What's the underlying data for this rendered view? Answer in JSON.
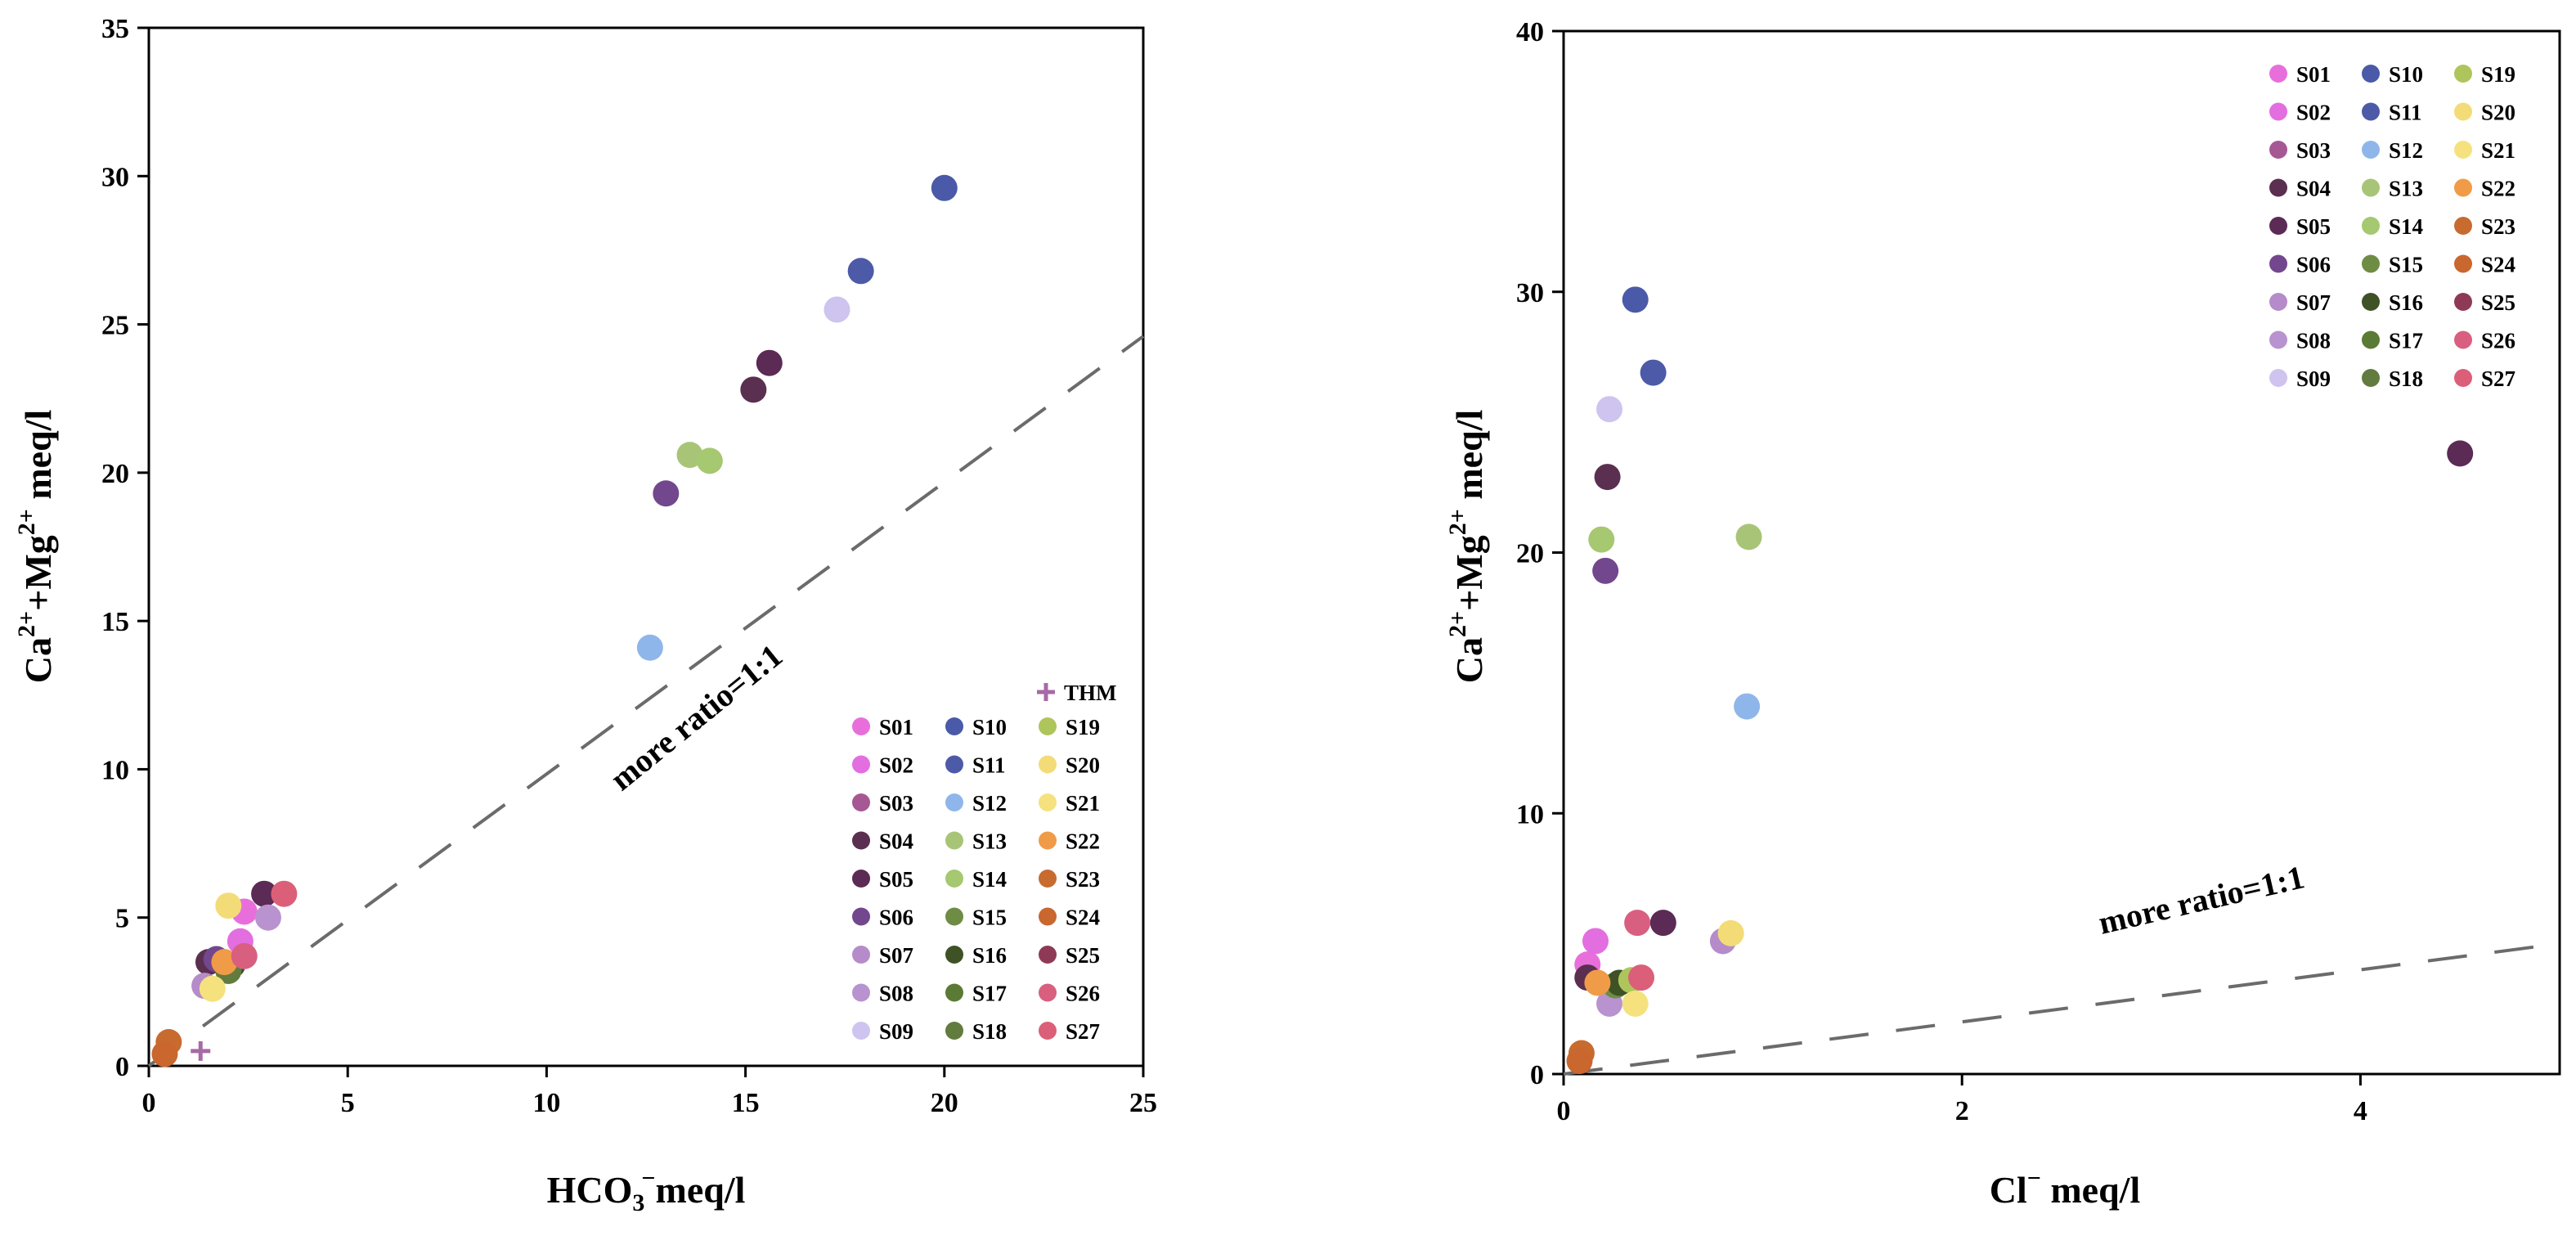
{
  "chart_data": [
    {
      "type": "scatter",
      "id": "left",
      "title": "",
      "xlabel": {
        "main": "HCO",
        "sub": "3",
        "sup": "−",
        "rest": "meq/l"
      },
      "ylabel": {
        "a": "Ca",
        "a_sup": "2+",
        "b": "+Mg",
        "b_sup": "2+",
        "rest": " meq/l"
      },
      "xlim": [
        0,
        25
      ],
      "ylim": [
        0,
        35
      ],
      "xticks": [
        "0",
        "5",
        "10",
        "15",
        "20",
        "25"
      ],
      "yticks": [
        "0",
        "5",
        "10",
        "15",
        "20",
        "25",
        "30",
        "35"
      ],
      "reference_line": {
        "label": "more ratio=1:1",
        "x": [
          0,
          25
        ],
        "y": [
          0,
          24.6
        ]
      },
      "thm": {
        "label": "THM",
        "x": 1.3,
        "y": 0.5
      },
      "points": [
        {
          "x": 2.4,
          "y": 5.2,
          "s": "S01"
        },
        {
          "x": 2.3,
          "y": 4.2,
          "s": "S02"
        },
        {
          "x": 1.5,
          "y": 3.5,
          "s": "S04"
        },
        {
          "x": 2.9,
          "y": 5.8,
          "s": "S05"
        },
        {
          "x": 15.2,
          "y": 22.8,
          "s": "S04"
        },
        {
          "x": 15.6,
          "y": 23.7,
          "s": "S05"
        },
        {
          "x": 13.0,
          "y": 19.3,
          "s": "S06"
        },
        {
          "x": 1.7,
          "y": 3.6,
          "s": "S06"
        },
        {
          "x": 1.4,
          "y": 2.7,
          "s": "S07"
        },
        {
          "x": 3.0,
          "y": 5.0,
          "s": "S08"
        },
        {
          "x": 17.3,
          "y": 25.5,
          "s": "S09"
        },
        {
          "x": 20.0,
          "y": 29.6,
          "s": "S10"
        },
        {
          "x": 17.9,
          "y": 26.8,
          "s": "S11"
        },
        {
          "x": 12.6,
          "y": 14.1,
          "s": "S12"
        },
        {
          "x": 13.6,
          "y": 20.6,
          "s": "S13"
        },
        {
          "x": 14.1,
          "y": 20.4,
          "s": "S14"
        },
        {
          "x": 2.0,
          "y": 3.3,
          "s": "S15"
        },
        {
          "x": 2.1,
          "y": 3.4,
          "s": "S16"
        },
        {
          "x": 2.0,
          "y": 3.2,
          "s": "S18"
        },
        {
          "x": 2.0,
          "y": 5.4,
          "s": "S20"
        },
        {
          "x": 1.6,
          "y": 2.6,
          "s": "S21"
        },
        {
          "x": 1.9,
          "y": 3.5,
          "s": "S22"
        },
        {
          "x": 0.5,
          "y": 0.8,
          "s": "S23"
        },
        {
          "x": 0.4,
          "y": 0.4,
          "s": "S24"
        },
        {
          "x": 3.4,
          "y": 5.8,
          "s": "S27"
        },
        {
          "x": 2.4,
          "y": 3.7,
          "s": "S26"
        }
      ]
    },
    {
      "type": "scatter",
      "id": "right",
      "title": "",
      "xlabel": {
        "main": "Cl",
        "sub": "",
        "sup": "−",
        "rest": " meq/l"
      },
      "ylabel": {
        "a": "Ca",
        "a_sup": "2+",
        "b": "+Mg",
        "b_sup": "2+",
        "rest": " meq/l"
      },
      "xlim": [
        0,
        5
      ],
      "ylim": [
        0,
        40
      ],
      "xticks": [
        "0",
        "2",
        "4"
      ],
      "yticks": [
        "0",
        "10",
        "20",
        "30",
        "40"
      ],
      "reference_line": {
        "label": "more ratio=1:1",
        "x": [
          0,
          5
        ],
        "y": [
          0,
          5
        ]
      },
      "points": [
        {
          "x": 0.12,
          "y": 4.2,
          "s": "S01"
        },
        {
          "x": 0.16,
          "y": 5.1,
          "s": "S02"
        },
        {
          "x": 0.12,
          "y": 3.7,
          "s": "S04"
        },
        {
          "x": 0.22,
          "y": 22.9,
          "s": "S04"
        },
        {
          "x": 4.5,
          "y": 23.8,
          "s": "S05"
        },
        {
          "x": 0.5,
          "y": 5.8,
          "s": "S05"
        },
        {
          "x": 0.21,
          "y": 19.3,
          "s": "S06"
        },
        {
          "x": 0.8,
          "y": 5.1,
          "s": "S07"
        },
        {
          "x": 0.23,
          "y": 2.7,
          "s": "S08"
        },
        {
          "x": 0.23,
          "y": 25.5,
          "s": "S09"
        },
        {
          "x": 0.36,
          "y": 29.7,
          "s": "S10"
        },
        {
          "x": 0.45,
          "y": 26.9,
          "s": "S11"
        },
        {
          "x": 0.92,
          "y": 14.1,
          "s": "S12"
        },
        {
          "x": 0.93,
          "y": 20.6,
          "s": "S13"
        },
        {
          "x": 0.19,
          "y": 20.5,
          "s": "S14"
        },
        {
          "x": 0.26,
          "y": 3.4,
          "s": "S15"
        },
        {
          "x": 0.28,
          "y": 3.5,
          "s": "S16"
        },
        {
          "x": 0.34,
          "y": 3.6,
          "s": "S19"
        },
        {
          "x": 0.84,
          "y": 5.4,
          "s": "S20"
        },
        {
          "x": 0.36,
          "y": 2.7,
          "s": "S21"
        },
        {
          "x": 0.17,
          "y": 3.5,
          "s": "S22"
        },
        {
          "x": 0.09,
          "y": 0.8,
          "s": "S23"
        },
        {
          "x": 0.08,
          "y": 0.5,
          "s": "S24"
        },
        {
          "x": 0.37,
          "y": 5.8,
          "s": "S26"
        },
        {
          "x": 0.39,
          "y": 3.7,
          "s": "S27"
        }
      ]
    }
  ],
  "legend": {
    "columns": [
      [
        "S01",
        "S02",
        "S03",
        "S04",
        "S05",
        "S06",
        "S07",
        "S08",
        "S09"
      ],
      [
        "S10",
        "S11",
        "S12",
        "S13",
        "S14",
        "S15",
        "S16",
        "S17",
        "S18"
      ],
      [
        "S19",
        "S20",
        "S21",
        "S22",
        "S23",
        "S24",
        "S25",
        "S26",
        "S27"
      ]
    ]
  },
  "sample_colors": {
    "S01": "#e86fdb",
    "S02": "#e36ee0",
    "S03": "#a55894",
    "S04": "#5a2f4f",
    "S05": "#5b2a55",
    "S06": "#73478d",
    "S07": "#b58bc9",
    "S08": "#b893cf",
    "S09": "#cfc3ef",
    "S10": "#4a5aa8",
    "S11": "#4d5aa8",
    "S12": "#8fb6ea",
    "S13": "#a8c577",
    "S14": "#a5c870",
    "S15": "#6f8c45",
    "S16": "#3e5226",
    "S17": "#5b7a35",
    "S18": "#627b3f",
    "S19": "#aec55c",
    "S20": "#f3dc77",
    "S21": "#f5e27e",
    "S22": "#f09b47",
    "S23": "#c86b2f",
    "S24": "#c9672e",
    "S25": "#8e3a56",
    "S26": "#d85f80",
    "S27": "#db5f78",
    "THM": "#a66aa6"
  }
}
